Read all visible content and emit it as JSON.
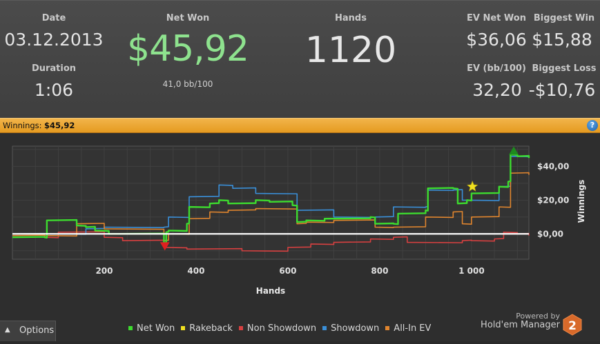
{
  "stats": {
    "date_label": "Date",
    "date_value": "03.12.2013",
    "duration_label": "Duration",
    "duration_value": "1:06",
    "net_won_label": "Net Won",
    "net_won_value": "$45,92",
    "bb_per_100": "41,0 bb/100",
    "hands_label": "Hands",
    "hands_value": "1120",
    "ev_net_won_label": "EV Net Won",
    "ev_net_won_value": "$36,06",
    "biggest_win_label": "Biggest Win",
    "biggest_win_value": "$15,88",
    "ev_bb_label": "EV (bb/100)",
    "ev_bb_value": "32,20",
    "biggest_loss_label": "Biggest Loss",
    "biggest_loss_value": "-$10,76"
  },
  "winnings_bar": {
    "label": "Winnings:",
    "value": "$45,92",
    "help_icon": "?"
  },
  "colors": {
    "net_won": "#3ddc2f",
    "rakeback": "#f0e020",
    "non_showdown": "#d84040",
    "showdown": "#3a8fd8",
    "all_in_ev": "#e0852e",
    "accent_orange": "#e59b21"
  },
  "chart_data": {
    "type": "line",
    "xlabel": "Hands",
    "ylabel": "Winnings",
    "xlim": [
      0,
      1125
    ],
    "ylim": [
      -15,
      52
    ],
    "x_ticks": [
      200,
      400,
      600,
      800,
      1000
    ],
    "x_tick_labels": [
      "200",
      "400",
      "600",
      "800",
      "1 000"
    ],
    "y_ticks": [
      0,
      20,
      40
    ],
    "y_tick_labels": [
      "$0,00",
      "$20,00",
      "$40,00"
    ],
    "grid": true,
    "legend_position": "bottom",
    "series": [
      {
        "name": "Net Won",
        "color": "#3ddc2f",
        "x": [
          0,
          70,
          75,
          140,
          160,
          180,
          210,
          330,
          335,
          340,
          380,
          385,
          430,
          450,
          470,
          530,
          560,
          610,
          620,
          640,
          680,
          780,
          790,
          830,
          840,
          900,
          905,
          960,
          970,
          990,
          1000,
          1060,
          1080,
          1085,
          1100,
          1125
        ],
        "y": [
          -2,
          -2,
          8,
          5,
          4,
          2,
          0,
          -5,
          1,
          2,
          6,
          16,
          18,
          20,
          18,
          20,
          19,
          17,
          7,
          8,
          9,
          10,
          6,
          6,
          12,
          14,
          27,
          27,
          18,
          20,
          24,
          28,
          31,
          47,
          46,
          45
        ]
      },
      {
        "name": "Rakeback",
        "color": "#f0e020",
        "x": [
          1000
        ],
        "y": [
          28
        ]
      },
      {
        "name": "Non Showdown",
        "color": "#d84040",
        "x": [
          0,
          70,
          100,
          200,
          240,
          330,
          380,
          500,
          600,
          650,
          700,
          780,
          830,
          860,
          980,
          1000,
          1050,
          1070,
          1100,
          1125
        ],
        "y": [
          -2,
          -2,
          1,
          -2,
          -4,
          -8,
          -9,
          -10,
          -8,
          -6,
          -5,
          -3,
          -2,
          -5,
          -4,
          -4,
          -3,
          1,
          0,
          -1
        ]
      },
      {
        "name": "Showdown",
        "color": "#3a8fd8",
        "x": [
          0,
          70,
          160,
          200,
          330,
          340,
          385,
          450,
          480,
          530,
          620,
          700,
          790,
          830,
          900,
          905,
          960,
          980,
          1060,
          1085,
          1125
        ],
        "y": [
          0,
          0,
          3,
          4,
          4,
          10,
          22,
          29,
          27,
          24,
          14,
          10,
          10,
          16,
          16,
          26,
          26,
          20,
          28,
          46,
          46
        ]
      },
      {
        "name": "All-In EV",
        "color": "#e0852e",
        "x": [
          0,
          70,
          140,
          200,
          330,
          340,
          385,
          430,
          470,
          530,
          620,
          640,
          700,
          790,
          830,
          900,
          960,
          980,
          1000,
          1060,
          1085,
          1125
        ],
        "y": [
          -1,
          -1,
          6,
          3,
          -4,
          0,
          9,
          13,
          14,
          15,
          6,
          7,
          8,
          4,
          4,
          10,
          13,
          6,
          10,
          16,
          36,
          35
        ]
      }
    ],
    "markers": [
      {
        "kind": "max",
        "x": 1092,
        "y": 49,
        "color": "#1e8a1e",
        "icon": "triangle-up-icon"
      },
      {
        "kind": "min",
        "x": 332,
        "y": -7,
        "color": "#e02020",
        "icon": "triangle-down-icon"
      },
      {
        "kind": "rakeback-star",
        "x": 1002,
        "y": 28,
        "color": "#f0e020",
        "icon": "star-icon"
      }
    ]
  },
  "legend": {
    "items": [
      {
        "label": "Net Won",
        "color": "#3ddc2f"
      },
      {
        "label": "Rakeback",
        "color": "#f0e020"
      },
      {
        "label": "Non Showdown",
        "color": "#d84040"
      },
      {
        "label": "Showdown",
        "color": "#3a8fd8"
      },
      {
        "label": "All-In EV",
        "color": "#e0852e"
      }
    ]
  },
  "footer": {
    "options_label": "Options",
    "powered_by": "Powered by",
    "brand": "Hold'em Manager",
    "logo_text": "2"
  }
}
